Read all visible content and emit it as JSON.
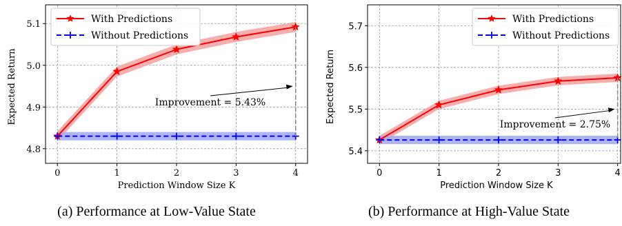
{
  "colors": {
    "with_line": "#ff0000",
    "with_band": "#f4a0a0",
    "without_line": "#0000ff",
    "without_band": "#a0a8f4",
    "grid": "#9a9a9a",
    "annotation_line": "#888888"
  },
  "chart_data": [
    {
      "type": "line",
      "caption": "(a) Performance at Low-Value State",
      "xlabel": "Prediction Window Size K",
      "ylabel": "Expected Return",
      "x": [
        0,
        1,
        2,
        3,
        4
      ],
      "xlim": [
        -0.2,
        4.2
      ],
      "ylim": [
        4.765,
        5.145
      ],
      "yticks": [
        4.8,
        4.9,
        5.0,
        5.1
      ],
      "ytick_labels": [
        "4.8",
        "4.9",
        "5.0",
        "5.1"
      ],
      "xtick_labels": [
        "0",
        "1",
        "2",
        "3",
        "4"
      ],
      "grid": true,
      "legend_position": "top-left",
      "series": [
        {
          "name": "With Predictions",
          "marker": "star",
          "values": [
            4.83,
            4.985,
            5.038,
            5.068,
            5.092
          ],
          "band": 0.012
        },
        {
          "name": "Without Predictions",
          "marker": "plus",
          "values": [
            4.83,
            4.83,
            4.83,
            4.83,
            4.83
          ],
          "band": 0.01
        }
      ],
      "annotation": {
        "text": "Improvement = 5.43%",
        "arrow_to": [
          4,
          4.95
        ]
      }
    },
    {
      "type": "line",
      "caption": "(b) Performance at High-Value State",
      "xlabel": "Prediction Window Size K",
      "ylabel": "Expected Return",
      "x": [
        0,
        1,
        2,
        3,
        4
      ],
      "xlim": [
        -0.2,
        4.05
      ],
      "ylim": [
        5.37,
        5.75
      ],
      "yticks": [
        5.4,
        5.5,
        5.6,
        5.7
      ],
      "ytick_labels": [
        "5.4",
        "5.5",
        "5.6",
        "5.7"
      ],
      "xtick_labels": [
        "0",
        "1",
        "2",
        "3",
        "4"
      ],
      "grid": true,
      "legend_position": "top-right",
      "series": [
        {
          "name": "With Predictions",
          "marker": "star",
          "values": [
            5.426,
            5.51,
            5.546,
            5.567,
            5.575
          ],
          "band": 0.01
        },
        {
          "name": "Without Predictions",
          "marker": "plus",
          "values": [
            5.426,
            5.426,
            5.426,
            5.426,
            5.426
          ],
          "band": 0.01
        }
      ],
      "annotation": {
        "text": "Improvement = 2.75%",
        "arrow_to": [
          4,
          5.5
        ]
      }
    }
  ]
}
